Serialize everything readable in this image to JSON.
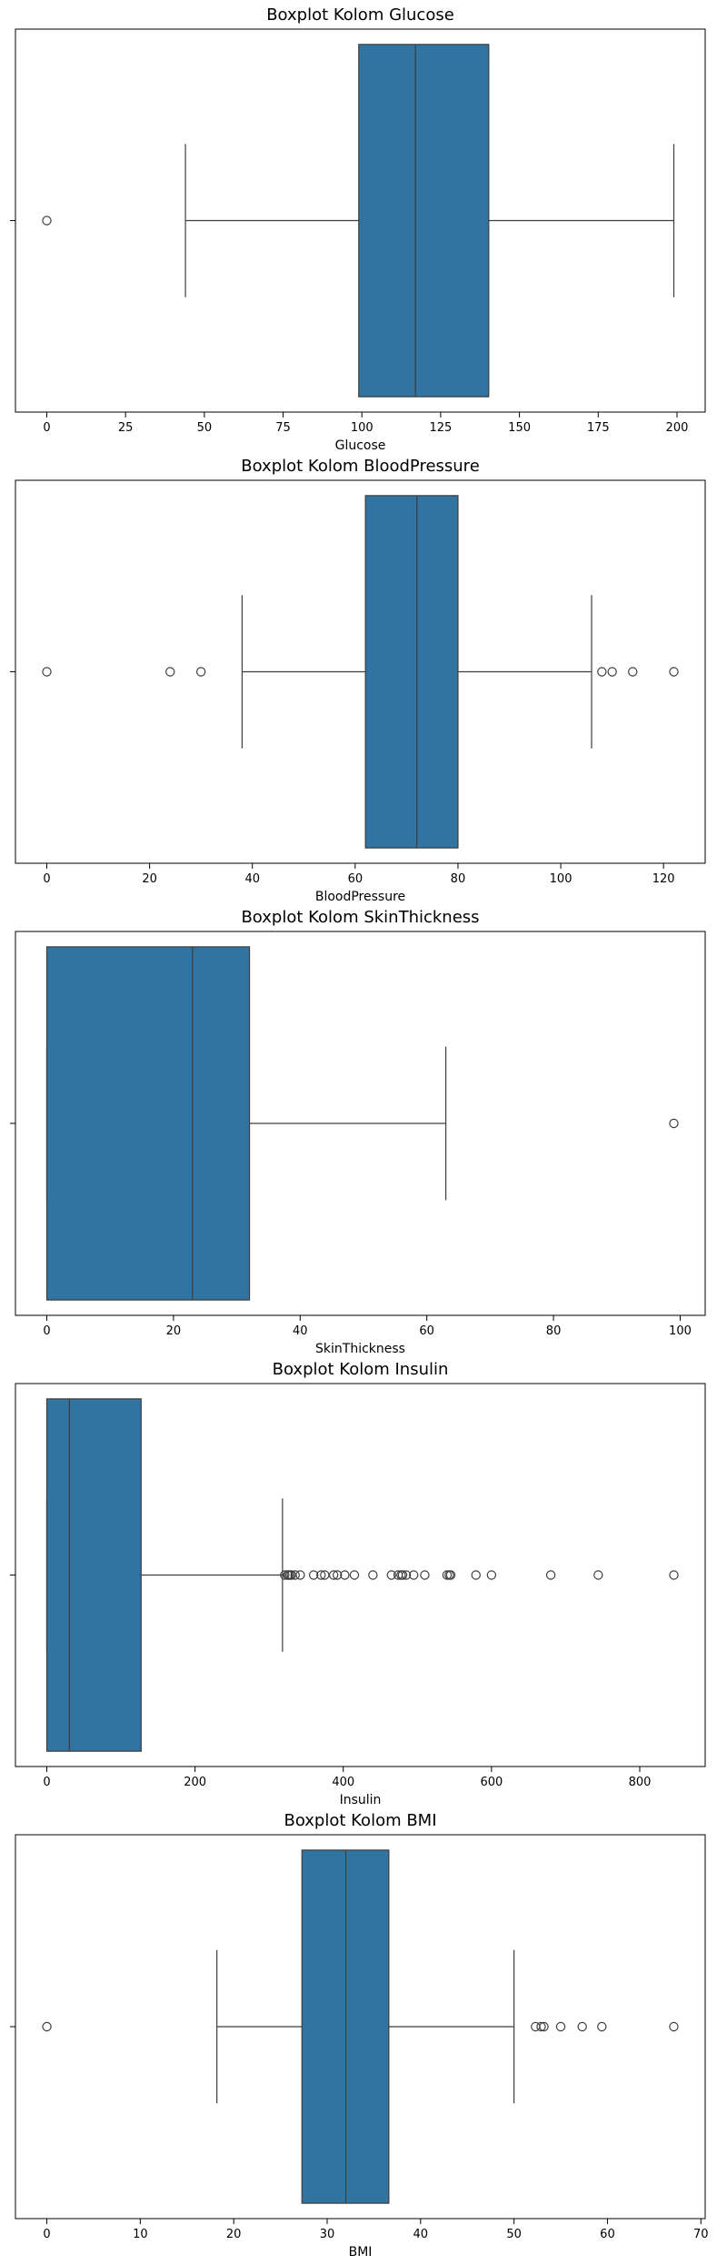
{
  "style": {
    "box_fill": "#3274a1",
    "line_color": "#3d3d3d",
    "axes_color": "#000000",
    "background": "#ffffff"
  },
  "chart_data": [
    {
      "type": "boxplot",
      "title": "Boxplot Kolom Glucose",
      "xlabel": "Glucose",
      "xlim": [
        -9.95,
        208.95
      ],
      "xticks": [
        0,
        25,
        50,
        75,
        100,
        125,
        150,
        175,
        200
      ],
      "tick_labels": [
        "0",
        "25",
        "50",
        "75",
        "100",
        "125",
        "150",
        "175",
        "200"
      ],
      "stats": {
        "whisker_low": 44,
        "q1": 99,
        "median": 117,
        "q3": 140.25,
        "whisker_high": 199
      },
      "outliers": [
        0
      ]
    },
    {
      "type": "boxplot",
      "title": "Boxplot Kolom BloodPressure",
      "xlabel": "BloodPressure",
      "xlim": [
        -6.1,
        128.1
      ],
      "xticks": [
        0,
        20,
        40,
        60,
        80,
        100,
        120
      ],
      "tick_labels": [
        "0",
        "20",
        "40",
        "60",
        "80",
        "100",
        "120"
      ],
      "stats": {
        "whisker_low": 38,
        "q1": 62,
        "median": 72,
        "q3": 80,
        "whisker_high": 106
      },
      "outliers": [
        0,
        24,
        30,
        108,
        110,
        114,
        122
      ]
    },
    {
      "type": "boxplot",
      "title": "Boxplot Kolom SkinThickness",
      "xlabel": "SkinThickness",
      "xlim": [
        -4.95,
        103.95
      ],
      "xticks": [
        0,
        20,
        40,
        60,
        80,
        100
      ],
      "tick_labels": [
        "0",
        "20",
        "40",
        "60",
        "80",
        "100"
      ],
      "stats": {
        "whisker_low": 0,
        "q1": 0,
        "median": 23,
        "q3": 32,
        "whisker_high": 63
      },
      "outliers": [
        99
      ]
    },
    {
      "type": "boxplot",
      "title": "Boxplot Kolom Insulin",
      "xlabel": "Insulin",
      "xlim": [
        -42.3,
        888.3
      ],
      "xticks": [
        0,
        200,
        400,
        600,
        800
      ],
      "tick_labels": [
        "0",
        "200",
        "400",
        "600",
        "800"
      ],
      "stats": {
        "whisker_low": 0,
        "q1": 0,
        "median": 30.5,
        "q3": 127.25,
        "whisker_high": 318
      },
      "outliers": [
        321,
        325,
        326,
        328,
        330,
        335,
        342,
        360,
        370,
        375,
        387,
        392,
        402,
        415,
        440,
        465,
        474,
        478,
        480,
        485,
        495,
        510,
        540,
        543,
        545,
        579,
        600,
        680,
        744,
        846
      ]
    },
    {
      "type": "boxplot",
      "title": "Boxplot Kolom BMI",
      "xlabel": "BMI",
      "xlim": [
        -3.36,
        70.46
      ],
      "xticks": [
        0,
        10,
        20,
        30,
        40,
        50,
        60,
        70
      ],
      "tick_labels": [
        "0",
        "10",
        "20",
        "30",
        "40",
        "50",
        "60",
        "70"
      ],
      "stats": {
        "whisker_low": 18.2,
        "q1": 27.3,
        "median": 32,
        "q3": 36.6,
        "whisker_high": 50
      },
      "outliers": [
        0,
        52.3,
        52.9,
        53.2,
        55,
        57.3,
        59.4,
        67.1
      ]
    }
  ]
}
